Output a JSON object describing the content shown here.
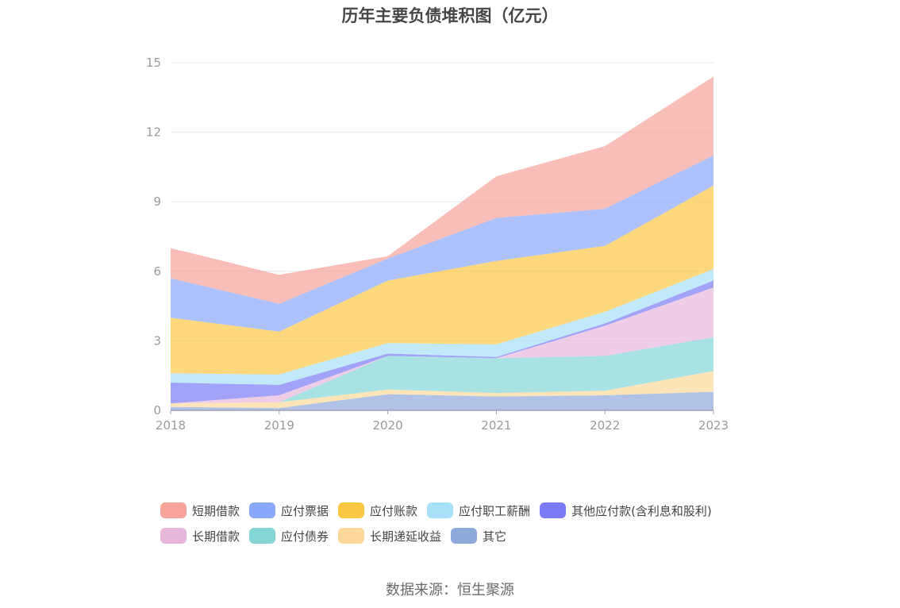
{
  "chart_data": {
    "type": "area",
    "stacked": true,
    "title": "历年主要负债堆积图（亿元）",
    "x": [
      "2018",
      "2019",
      "2020",
      "2021",
      "2022",
      "2023"
    ],
    "y_ticks": [
      "0",
      "3",
      "6",
      "9",
      "12",
      "15"
    ],
    "ylim": [
      0,
      15
    ],
    "grid": true,
    "legend_position": "bottom",
    "series": [
      {
        "name": "其它",
        "color": "#8eaadb",
        "values": [
          0.15,
          0.1,
          0.7,
          0.6,
          0.65,
          0.8
        ]
      },
      {
        "name": "长期递延收益",
        "color": "#fdd89b",
        "values": [
          0.15,
          0.25,
          0.2,
          0.15,
          0.2,
          0.9
        ]
      },
      {
        "name": "应付债券",
        "color": "#84d6d6",
        "values": [
          0.0,
          0.0,
          1.45,
          1.5,
          1.5,
          1.45
        ]
      },
      {
        "name": "长期借款",
        "color": "#e8b8dc",
        "values": [
          0.0,
          0.3,
          0.0,
          0.0,
          1.3,
          2.15
        ]
      },
      {
        "name": "其他应付款(含利息和股利)",
        "color": "#7b7bf5",
        "values": [
          0.9,
          0.45,
          0.1,
          0.05,
          0.1,
          0.3
        ]
      },
      {
        "name": "应付职工薪酬",
        "color": "#a8e0f7",
        "values": [
          0.4,
          0.45,
          0.45,
          0.55,
          0.5,
          0.5
        ]
      },
      {
        "name": "应付账款",
        "color": "#fcc844",
        "values": [
          2.4,
          1.85,
          2.7,
          3.6,
          2.85,
          3.6
        ]
      },
      {
        "name": "应付票据",
        "color": "#8aa8fc",
        "values": [
          1.7,
          1.2,
          0.95,
          1.85,
          1.6,
          1.3
        ]
      },
      {
        "name": "短期借款",
        "color": "#f7a399",
        "values": [
          1.3,
          1.25,
          0.1,
          1.8,
          2.7,
          3.4
        ]
      }
    ],
    "legend_rows": [
      [
        {
          "name": "短期借款",
          "color": "#f7a399"
        },
        {
          "name": "应付票据",
          "color": "#8aa8fc"
        },
        {
          "name": "应付账款",
          "color": "#fcc844"
        },
        {
          "name": "应付职工薪酬",
          "color": "#a8e0f7"
        },
        {
          "name": "其他应付款(含利息和股利)",
          "color": "#7b7bf5"
        }
      ],
      [
        {
          "name": "长期借款",
          "color": "#e8b8dc"
        },
        {
          "name": "应付债券",
          "color": "#84d6d6"
        },
        {
          "name": "长期递延收益",
          "color": "#fdd89b"
        },
        {
          "name": "其它",
          "color": "#8eaadb"
        }
      ]
    ],
    "source": "数据来源：恒生聚源"
  }
}
